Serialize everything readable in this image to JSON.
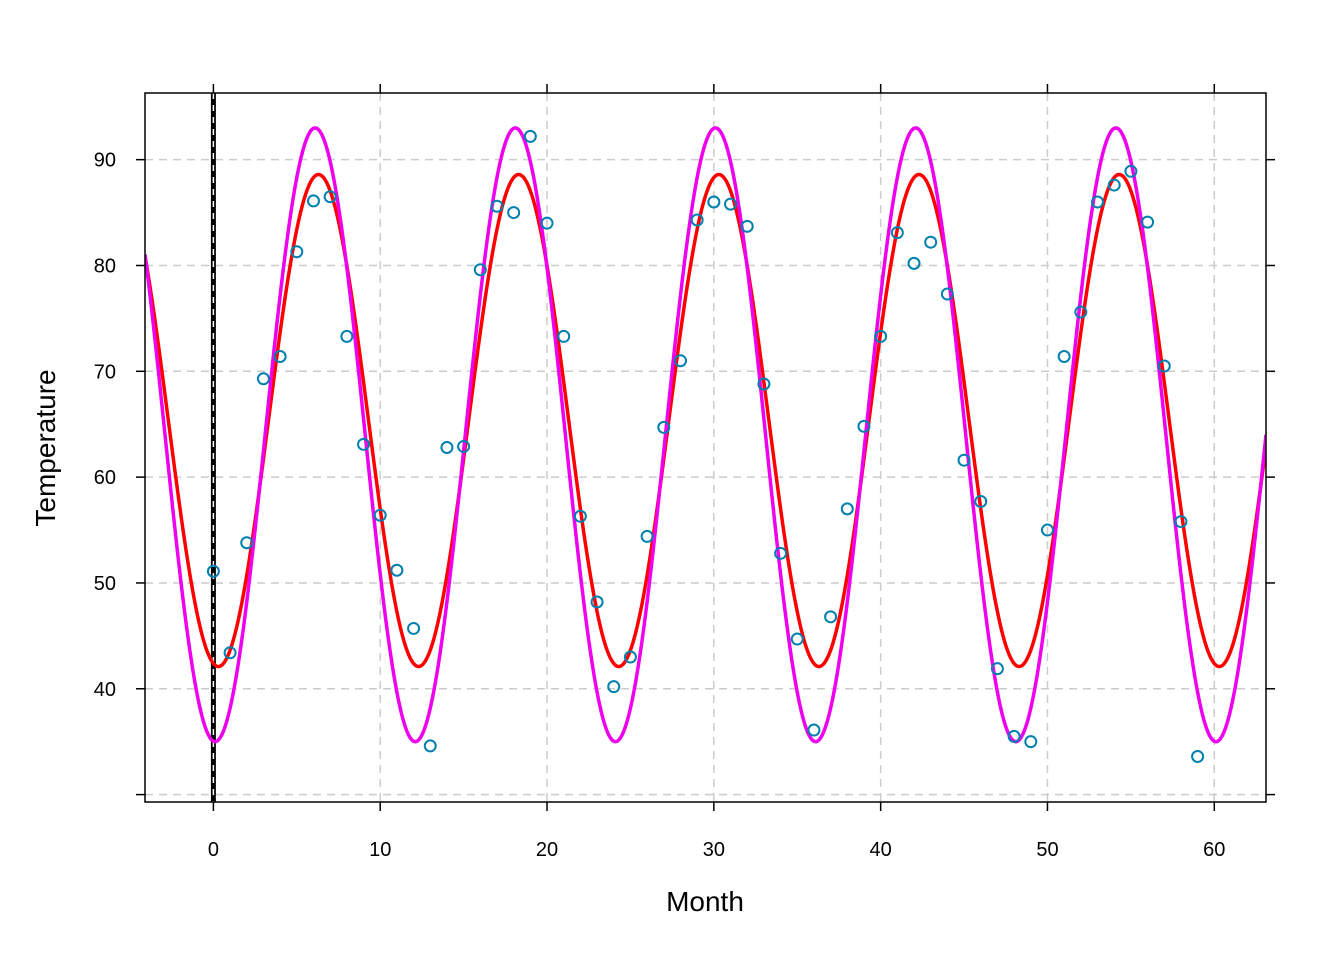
{
  "chart_data": {
    "type": "scatter",
    "title": "",
    "xlabel": "Month",
    "ylabel": "Temperature",
    "xlim": [
      -4.1,
      63.1
    ],
    "ylim": [
      29.3,
      96.3
    ],
    "x_ticks": [
      0,
      10,
      20,
      30,
      40,
      50,
      60
    ],
    "x_tick_labels": [
      "0",
      "10",
      "20",
      "30",
      "40",
      "50",
      "60"
    ],
    "y_ticks": [
      30,
      40,
      50,
      60,
      70,
      80,
      90
    ],
    "y_tick_labels": [
      "",
      "40",
      "50",
      "60",
      "70",
      "80",
      "90"
    ],
    "grid": true,
    "reference_line": {
      "orientation": "vertical",
      "x": 0,
      "style": "black-white dashed"
    },
    "points": {
      "name": "observed",
      "color": "#0080b0",
      "x": [
        0,
        1,
        2,
        3,
        4,
        5,
        6,
        7,
        8,
        9,
        10,
        11,
        12,
        13,
        14,
        15,
        16,
        17,
        18,
        19,
        20,
        21,
        22,
        23,
        24,
        25,
        26,
        27,
        28,
        29,
        30,
        31,
        32,
        33,
        34,
        35,
        36,
        37,
        38,
        39,
        40,
        41,
        42,
        43,
        44,
        45,
        46,
        47,
        48,
        49,
        50,
        51,
        52,
        53,
        54,
        55,
        56,
        57,
        58,
        59
      ],
      "y": [
        51.1,
        43.4,
        53.8,
        69.3,
        71.4,
        81.3,
        86.1,
        86.5,
        73.3,
        63.1,
        56.4,
        51.2,
        45.7,
        34.6,
        62.8,
        62.9,
        79.6,
        85.6,
        85.0,
        92.2,
        84.0,
        73.3,
        56.3,
        48.2,
        40.2,
        43.0,
        54.4,
        64.7,
        71.0,
        84.3,
        86.0,
        85.8,
        83.7,
        68.8,
        52.8,
        44.7,
        36.1,
        46.8,
        57.0,
        64.8,
        73.3,
        83.1,
        80.2,
        82.2,
        77.3,
        61.6,
        57.7,
        41.9,
        35.5,
        35.0,
        55.0,
        71.4,
        75.6,
        86.0,
        87.6,
        88.9,
        84.1,
        70.5,
        55.8,
        33.6
      ]
    },
    "series": [
      {
        "name": "fit-red",
        "color": "#ff0000",
        "mean": 65.35,
        "amplitude": 23.25,
        "period": 12,
        "phase": 6.3
      },
      {
        "name": "fit-magenta",
        "color": "#ee00ee",
        "mean": 64.0,
        "amplitude": 29.0,
        "period": 12,
        "phase": 6.1
      }
    ]
  }
}
